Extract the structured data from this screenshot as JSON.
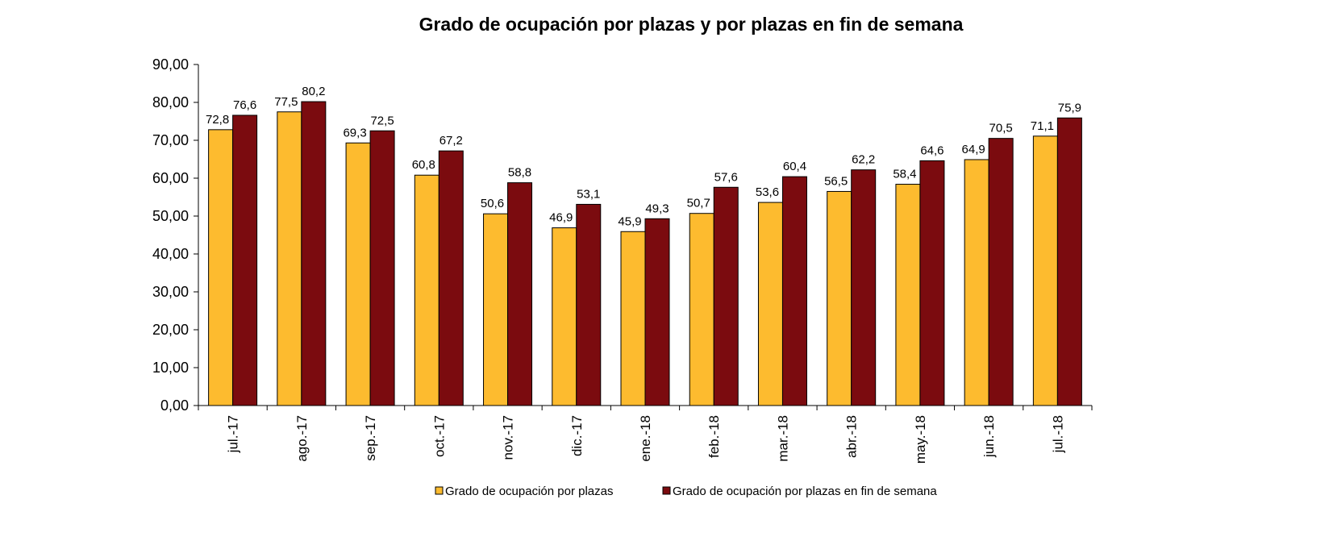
{
  "chart_data": {
    "type": "bar",
    "title": "Grado de ocupación por plazas y por plazas en fin de semana",
    "xlabel": "",
    "ylabel": "",
    "ylim": [
      0,
      90
    ],
    "yticks": [
      "0,00",
      "10,00",
      "20,00",
      "30,00",
      "40,00",
      "50,00",
      "60,00",
      "70,00",
      "80,00",
      "90,00"
    ],
    "categories": [
      "jul.-17",
      "ago.-17",
      "sep.-17",
      "oct.-17",
      "nov.-17",
      "dic.-17",
      "ene.-18",
      "feb.-18",
      "mar.-18",
      "abr.-18",
      "may.-18",
      "jun.-18",
      "jul.-18"
    ],
    "series": [
      {
        "name": "Grado de ocupación por plazas",
        "color": "#FDBB2F",
        "values": [
          72.8,
          77.5,
          69.3,
          60.8,
          50.6,
          46.9,
          45.9,
          50.7,
          53.6,
          56.5,
          58.4,
          64.9,
          71.1
        ],
        "labels": [
          "72,8",
          "77,5",
          "69,3",
          "60,8",
          "50,6",
          "46,9",
          "45,9",
          "50,7",
          "53,6",
          "56,5",
          "58,4",
          "64,9",
          "71,1"
        ]
      },
      {
        "name": "Grado de ocupación por plazas en fin de semana",
        "color": "#7B0B0F",
        "values": [
          76.6,
          80.2,
          72.5,
          67.2,
          58.8,
          53.1,
          49.3,
          57.6,
          60.4,
          62.2,
          64.6,
          70.5,
          75.9
        ],
        "labels": [
          "76,6",
          "80,2",
          "72,5",
          "67,2",
          "58,8",
          "53,1",
          "49,3",
          "57,6",
          "60,4",
          "62,2",
          "64,6",
          "70,5",
          "75,9"
        ]
      }
    ],
    "grid": false,
    "legend_position": "bottom"
  }
}
